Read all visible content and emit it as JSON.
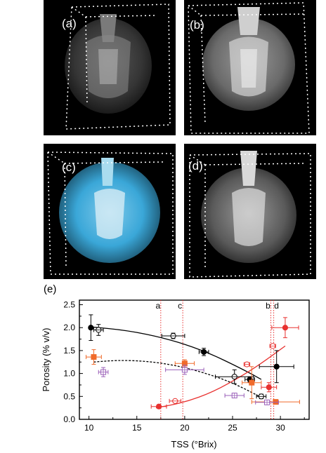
{
  "panels": [
    {
      "label": "(a)",
      "variant": "a"
    },
    {
      "label": "(b)",
      "variant": "b"
    },
    {
      "label": "(c)",
      "variant": "c"
    },
    {
      "label": "(d)",
      "variant": "d"
    }
  ],
  "colors": {
    "black_series": "#000000",
    "red_series": "#e8312f",
    "orange_series": "#f06a2a",
    "purple_series": "#9a5fb8",
    "reference_line": "#e8312f",
    "cyan_tissue": "#3aa7d8"
  },
  "chart_data": {
    "type": "scatter",
    "panel_label": "(e)",
    "xlabel": "TSS (°Brix)",
    "ylabel": "Porosity (% v/v)",
    "xlim": [
      9,
      33
    ],
    "ylim": [
      0,
      2.6
    ],
    "xticks": [
      10,
      15,
      20,
      25,
      30
    ],
    "yticks": [
      0.0,
      0.5,
      1.0,
      1.5,
      2.0,
      2.5
    ],
    "grid": false,
    "reference_lines": [
      {
        "label": "a",
        "x": 17.5
      },
      {
        "label": "c",
        "x": 19.8
      },
      {
        "label": "b",
        "x": 29.0
      },
      {
        "label": "d",
        "x": 29.3
      }
    ],
    "series": [
      {
        "marker": "filled-circle",
        "color": "#000000",
        "points": [
          {
            "x": 10.2,
            "y": 2.0,
            "xerr": 0.0,
            "yerr": 0.28
          },
          {
            "x": 22.0,
            "y": 1.47,
            "xerr": 0.5,
            "yerr": 0.08
          },
          {
            "x": 26.8,
            "y": 0.87,
            "xerr": 0.5,
            "yerr": 0.06
          },
          {
            "x": 29.6,
            "y": 1.15,
            "xerr": 1.8,
            "yerr": 0.35
          }
        ]
      },
      {
        "marker": "open-circle-cross",
        "color": "#000000",
        "points": [
          {
            "x": 11.0,
            "y": 1.95,
            "xerr": 0.5,
            "yerr": 0.12
          },
          {
            "x": 18.8,
            "y": 1.82,
            "xerr": 1.2,
            "yerr": 0.06
          },
          {
            "x": 25.2,
            "y": 0.93,
            "xerr": 2.0,
            "yerr": 0.15
          },
          {
            "x": 28.0,
            "y": 0.5,
            "xerr": 0.5,
            "yerr": 0.05
          }
        ]
      },
      {
        "marker": "filled-circle",
        "color": "#e8312f",
        "points": [
          {
            "x": 17.3,
            "y": 0.28,
            "xerr": 0.8,
            "yerr": 0.03
          },
          {
            "x": 28.8,
            "y": 0.7,
            "xerr": 0.8,
            "yerr": 0.1
          },
          {
            "x": 30.5,
            "y": 2.0,
            "xerr": 1.4,
            "yerr": 0.22
          }
        ]
      },
      {
        "marker": "open-circle-cross",
        "color": "#e8312f",
        "points": [
          {
            "x": 19.0,
            "y": 0.4,
            "xerr": 0.6,
            "yerr": 0.03
          },
          {
            "x": 26.5,
            "y": 1.2,
            "xerr": 0.3,
            "yerr": 0.04
          },
          {
            "x": 29.2,
            "y": 1.6,
            "xerr": 0.3,
            "yerr": 0.04
          }
        ]
      },
      {
        "marker": "filled-square",
        "color": "#f06a2a",
        "points": [
          {
            "x": 10.5,
            "y": 1.36,
            "xerr": 0.8,
            "yerr": 0.16
          },
          {
            "x": 20.0,
            "y": 1.22,
            "xerr": 1.0,
            "yerr": 0.08
          },
          {
            "x": 27.0,
            "y": 0.8,
            "xerr": 1.0,
            "yerr": 0.35
          },
          {
            "x": 29.5,
            "y": 0.38,
            "xerr": 2.5,
            "yerr": 0.05
          }
        ]
      },
      {
        "marker": "open-square-cross",
        "color": "#9a5fb8",
        "points": [
          {
            "x": 11.5,
            "y": 1.03,
            "xerr": 0.5,
            "yerr": 0.1
          },
          {
            "x": 20.0,
            "y": 1.08,
            "xerr": 2.0,
            "yerr": 0.1
          },
          {
            "x": 25.2,
            "y": 0.52,
            "xerr": 1.0,
            "yerr": 0.04
          },
          {
            "x": 28.6,
            "y": 0.37,
            "xerr": 1.2,
            "yerr": 0.05
          }
        ]
      }
    ],
    "fits": [
      {
        "style": "solid",
        "color": "#000000",
        "points": [
          [
            10,
            2.02
          ],
          [
            14,
            1.94
          ],
          [
            18,
            1.77
          ],
          [
            22,
            1.5
          ],
          [
            26,
            1.1
          ],
          [
            28,
            0.87
          ]
        ]
      },
      {
        "style": "dashed",
        "color": "#000000",
        "points": [
          [
            10.5,
            1.25
          ],
          [
            13,
            1.29
          ],
          [
            16,
            1.27
          ],
          [
            19,
            1.18
          ],
          [
            22,
            1.02
          ],
          [
            25,
            0.8
          ],
          [
            28,
            0.48
          ]
        ]
      },
      {
        "style": "solid",
        "color": "#e8312f",
        "points": [
          [
            17,
            0.25
          ],
          [
            20,
            0.37
          ],
          [
            23,
            0.6
          ],
          [
            26,
            0.95
          ],
          [
            28,
            1.22
          ],
          [
            30.5,
            1.6
          ]
        ]
      }
    ]
  }
}
